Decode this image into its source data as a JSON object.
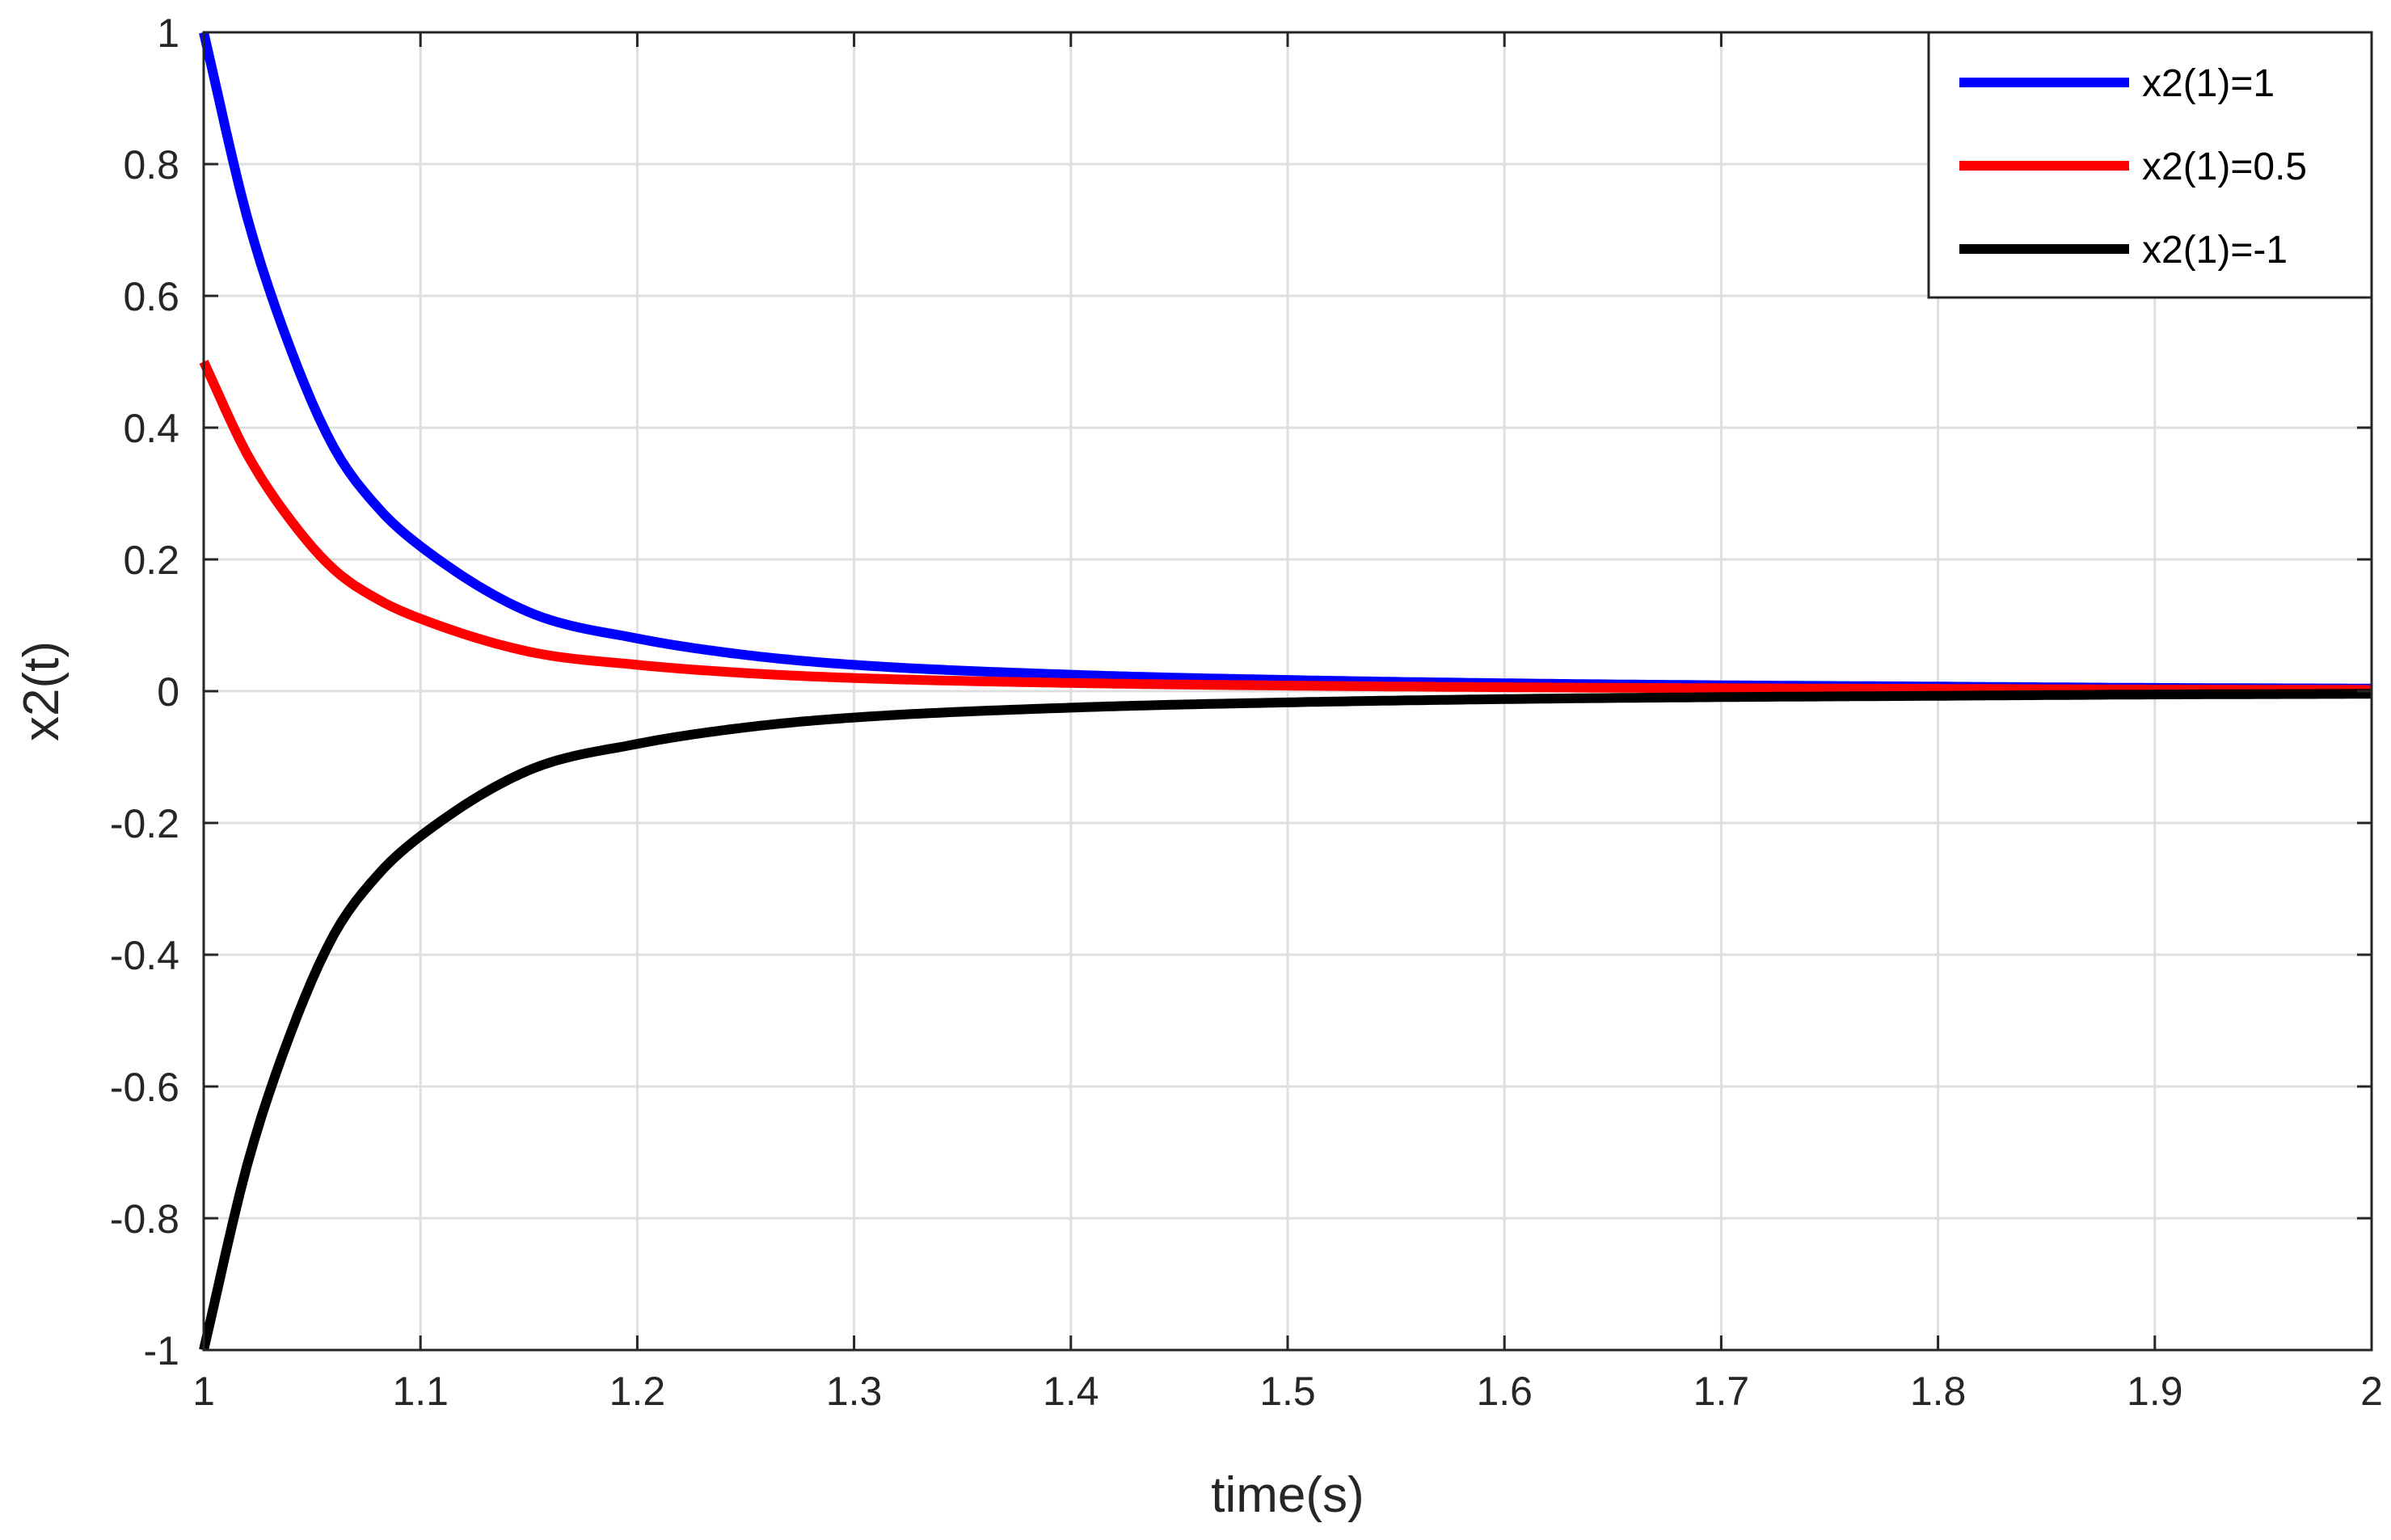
{
  "chart_data": {
    "type": "line",
    "xlabel": "time(s)",
    "ylabel": "x2(t)",
    "xlim": [
      1,
      2
    ],
    "ylim": [
      -1,
      1
    ],
    "xticks": [
      1,
      1.1,
      1.2,
      1.3,
      1.4,
      1.5,
      1.6,
      1.7,
      1.8,
      1.9,
      2
    ],
    "xtick_labels": [
      "1",
      "1.1",
      "1.2",
      "1.3",
      "1.4",
      "1.5",
      "1.6",
      "1.7",
      "1.8",
      "1.9",
      "2"
    ],
    "yticks": [
      -1,
      -0.8,
      -0.6,
      -0.4,
      -0.2,
      0,
      0.2,
      0.4,
      0.6,
      0.8,
      1
    ],
    "ytick_labels": [
      "-1",
      "-0.8",
      "-0.6",
      "-0.4",
      "-0.2",
      "0",
      "0.2",
      "0.4",
      "0.6",
      "0.8",
      "1"
    ],
    "grid": true,
    "legend_position": "top-right",
    "x": [
      1.0,
      1.02,
      1.04,
      1.06,
      1.08,
      1.1,
      1.15,
      1.2,
      1.25,
      1.3,
      1.4,
      1.5,
      1.6,
      1.7,
      1.8,
      1.9,
      2.0
    ],
    "series": [
      {
        "name": "x2(1)=1",
        "color": "#0000ff",
        "values": [
          1.0,
          0.72,
          0.52,
          0.37,
          0.28,
          0.22,
          0.12,
          0.08,
          0.055,
          0.04,
          0.025,
          0.017,
          0.012,
          0.009,
          0.007,
          0.005,
          0.004
        ]
      },
      {
        "name": "x2(1)=0.5",
        "color": "#ff0000",
        "values": [
          0.5,
          0.36,
          0.26,
          0.185,
          0.14,
          0.11,
          0.06,
          0.04,
          0.0275,
          0.02,
          0.0125,
          0.0085,
          0.006,
          0.0045,
          0.0035,
          0.0025,
          0.002
        ]
      },
      {
        "name": "x2(1)=-1",
        "color": "#000000",
        "values": [
          -1.0,
          -0.72,
          -0.52,
          -0.37,
          -0.28,
          -0.22,
          -0.12,
          -0.08,
          -0.055,
          -0.04,
          -0.025,
          -0.017,
          -0.012,
          -0.009,
          -0.007,
          -0.005,
          -0.004
        ]
      }
    ]
  }
}
